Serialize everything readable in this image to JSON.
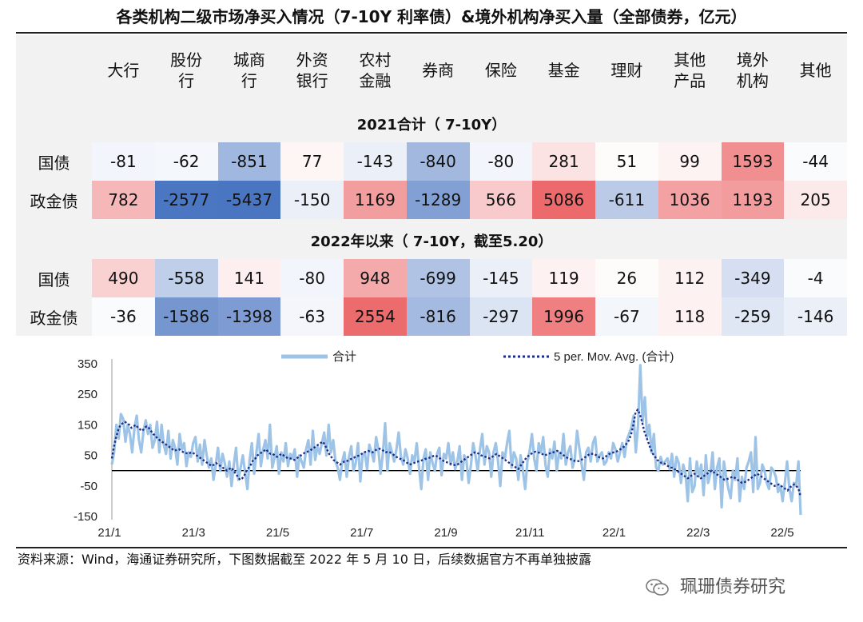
{
  "title": "各类机构二级市场净买入情况（7-10Y 利率债）&境外机构净买入量（全部债券，亿元）",
  "table": {
    "columns": [
      "大行",
      "股份行",
      "城商行",
      "外资银行",
      "农村金融",
      "券商",
      "保险",
      "基金",
      "理财",
      "其他产品",
      "境外机构",
      "其他"
    ],
    "column_lines": [
      [
        "大行"
      ],
      [
        "股份",
        "行"
      ],
      [
        "城商",
        "行"
      ],
      [
        "外资",
        "银行"
      ],
      [
        "农村",
        "金融"
      ],
      [
        "券商"
      ],
      [
        "保险"
      ],
      [
        "基金"
      ],
      [
        "理财"
      ],
      [
        "其他",
        "产品"
      ],
      [
        "境外",
        "机构"
      ],
      [
        "其他"
      ]
    ],
    "sections": [
      {
        "title": "2021合计（ 7-10Y）",
        "rows": [
          {
            "label": "国债",
            "values": [
              -81,
              -62,
              -851,
              77,
              -143,
              -840,
              -80,
              281,
              51,
              99,
              1593,
              -44
            ]
          },
          {
            "label": "政金债",
            "values": [
              782,
              -2577,
              -5437,
              -150,
              1169,
              -1289,
              566,
              5086,
              -611,
              1036,
              1193,
              205
            ]
          }
        ]
      },
      {
        "title": "2022年以来（ 7-10Y，截至5.20）",
        "rows": [
          {
            "label": "国债",
            "values": [
              490,
              -558,
              141,
              -80,
              948,
              -699,
              -145,
              119,
              26,
              112,
              -349,
              -4
            ]
          },
          {
            "label": "政金债",
            "values": [
              -36,
              -1586,
              -1398,
              -63,
              2554,
              -816,
              -297,
              1996,
              -67,
              118,
              -259,
              -146
            ]
          }
        ]
      }
    ]
  },
  "chart_data": {
    "type": "line",
    "ylim": [
      -150,
      350
    ],
    "yticks": [
      "350",
      "250",
      "150",
      "50",
      "-50",
      "-150"
    ],
    "xtick_labels": [
      "21/1",
      "21/3",
      "21/5",
      "21/7",
      "21/9",
      "21/11",
      "22/1",
      "22/3",
      "22/5"
    ],
    "legend": [
      {
        "label": "合计",
        "style": "solid",
        "color": "#9dc3e6"
      },
      {
        "label": "5 per. Mov. Avg. (合计)",
        "style": "dotted",
        "color": "#1f2d8a"
      }
    ],
    "series": [
      {
        "name": "合计",
        "x_start": "2021-01-04",
        "x_end": "2022-05-10",
        "values": [
          20,
          60,
          150,
          105,
          185,
          170,
          95,
          150,
          120,
          60,
          140,
          180,
          100,
          60,
          130,
          165,
          120,
          150,
          75,
          100,
          160,
          60,
          150,
          85,
          55,
          130,
          40,
          100,
          75,
          20,
          120,
          70,
          90,
          15,
          60,
          45,
          90,
          110,
          30,
          85,
          20,
          100,
          50,
          10,
          40,
          -30,
          20,
          75,
          0,
          55,
          25,
          -20,
          30,
          -50,
          20,
          75,
          -30,
          10,
          50,
          -5,
          -60,
          35,
          90,
          -10,
          60,
          120,
          15,
          70,
          100,
          40,
          150,
          10,
          40,
          80,
          -10,
          60,
          30,
          90,
          15,
          55,
          40,
          70,
          -20,
          50,
          30,
          10,
          70,
          100,
          20,
          130,
          35,
          80,
          55,
          90,
          125,
          50,
          150,
          60,
          100,
          30,
          10,
          -30,
          30,
          60,
          -20,
          45,
          80,
          0,
          25,
          90,
          -35,
          50,
          60,
          5,
          85,
          60,
          30,
          110,
          70,
          -10,
          55,
          155,
          0,
          90,
          60,
          30,
          70,
          125,
          45,
          20,
          70,
          40,
          -10,
          50,
          30,
          90,
          10,
          -60,
          40,
          70,
          -30,
          60,
          25,
          0,
          55,
          75,
          -15,
          55,
          40,
          90,
          20,
          60,
          5,
          30,
          80,
          -30,
          50,
          35,
          -40,
          20,
          90,
          50,
          0,
          70,
          120,
          20,
          80,
          60,
          -20,
          60,
          90,
          30,
          -50,
          60,
          40,
          90,
          130,
          10,
          60,
          40,
          -30,
          50,
          0,
          -60,
          30,
          65,
          120,
          40,
          0,
          90,
          60,
          110,
          20,
          -20,
          70,
          40,
          95,
          0,
          60,
          40,
          120,
          20,
          60,
          80,
          10,
          40,
          130,
          75,
          20,
          -30,
          60,
          75,
          30,
          90,
          110,
          30,
          50,
          60,
          20,
          30,
          60,
          40,
          90,
          70,
          30,
          60,
          90,
          45,
          100,
          120,
          140,
          180,
          60,
          150,
          345,
          160,
          240,
          110,
          150,
          60,
          120,
          10,
          0,
          45,
          20,
          30,
          40,
          5,
          55,
          -20,
          45,
          25,
          -40,
          20,
          -10,
          -100,
          40,
          -70,
          -50,
          30,
          -20,
          20,
          -80,
          50,
          -40,
          -10,
          60,
          -60,
          10,
          40,
          -120,
          30,
          -20,
          -60,
          -90,
          0,
          -30,
          40,
          -100,
          -20,
          -60,
          10,
          30,
          60,
          -70,
          110,
          -60,
          -40,
          20,
          0,
          -40,
          -60,
          10,
          0,
          -20,
          -70,
          -50,
          -100,
          -40,
          30,
          -60,
          -100,
          -40,
          -50,
          30,
          -145
        ]
      },
      {
        "name": "5 per. Mov. Avg. (合计)",
        "x_start": "2021-01-04",
        "x_end": "2022-05-10",
        "values": [
          40,
          80,
          110,
          135,
          150,
          155,
          160,
          155,
          150,
          140,
          145,
          150,
          140,
          135,
          130,
          140,
          145,
          140,
          130,
          120,
          115,
          105,
          100,
          95,
          90,
          85,
          80,
          75,
          70,
          65,
          70,
          70,
          65,
          60,
          58,
          55,
          58,
          60,
          55,
          50,
          45,
          40,
          35,
          30,
          25,
          20,
          15,
          20,
          25,
          20,
          15,
          10,
          5,
          0,
          5,
          10,
          0,
          -10,
          -20,
          -30,
          -25,
          -15,
          0,
          10,
          20,
          35,
          40,
          50,
          55,
          60,
          65,
          70,
          60,
          55,
          55,
          50,
          45,
          50,
          55,
          50,
          45,
          40,
          40,
          38,
          35,
          40,
          45,
          50,
          55,
          60,
          62,
          65,
          70,
          75,
          80,
          85,
          90,
          95,
          85,
          70,
          55,
          45,
          35,
          30,
          25,
          20,
          25,
          30,
          30,
          35,
          38,
          40,
          45,
          48,
          50,
          55,
          60,
          62,
          65,
          62,
          60,
          65,
          70,
          72,
          70,
          65,
          60,
          62,
          60,
          55,
          50,
          45,
          40,
          38,
          35,
          30,
          25,
          20,
          22,
          25,
          28,
          30,
          32,
          35,
          38,
          40,
          42,
          45,
          48,
          50,
          45,
          40,
          35,
          30,
          28,
          25,
          22,
          20,
          18,
          20,
          25,
          30,
          35,
          40,
          45,
          50,
          55,
          60,
          58,
          55,
          50,
          48,
          45,
          42,
          40,
          45,
          50,
          55,
          50,
          45,
          40,
          35,
          30,
          25,
          20,
          15,
          10,
          5,
          15,
          25,
          35,
          45,
          50,
          55,
          60,
          62,
          60,
          58,
          55,
          50,
          52,
          55,
          58,
          60,
          62,
          65,
          60,
          55,
          50,
          45,
          40,
          38,
          35,
          32,
          30,
          32,
          35,
          40,
          45,
          50,
          55,
          55,
          55,
          50,
          45,
          42,
          40,
          45,
          50,
          55,
          58,
          60,
          62,
          65,
          70,
          75,
          80,
          90,
          100,
          120,
          150,
          190,
          200,
          185,
          160,
          130,
          110,
          90,
          70,
          55,
          45,
          35,
          30,
          25,
          25,
          20,
          15,
          10,
          10,
          5,
          0,
          -5,
          -10,
          -15,
          -20,
          -25,
          -20,
          -15,
          -10,
          -15,
          -20,
          -25,
          -20,
          -15,
          -10,
          -5,
          0,
          -5,
          -10,
          -15,
          -20,
          -25,
          -30,
          -28,
          -25,
          -22,
          -20,
          -25,
          -30,
          -35,
          -40,
          -38,
          -35,
          -30,
          -25,
          -20,
          -15,
          -10,
          -15,
          -20,
          -25,
          -30,
          -35,
          -40,
          -45,
          -50,
          -48,
          -45,
          -50,
          -55,
          -60,
          -65,
          -55,
          -50,
          -45,
          -50,
          -60,
          -85
        ]
      }
    ]
  },
  "footer": {
    "source": "资料来源：Wind，海通证券研究所，下图数据截至 2022 年 5 月 10 日，后续数据官方不再单独披露",
    "watermark": "珮珊债券研究",
    "watermark_icon": "wechat-icon"
  }
}
